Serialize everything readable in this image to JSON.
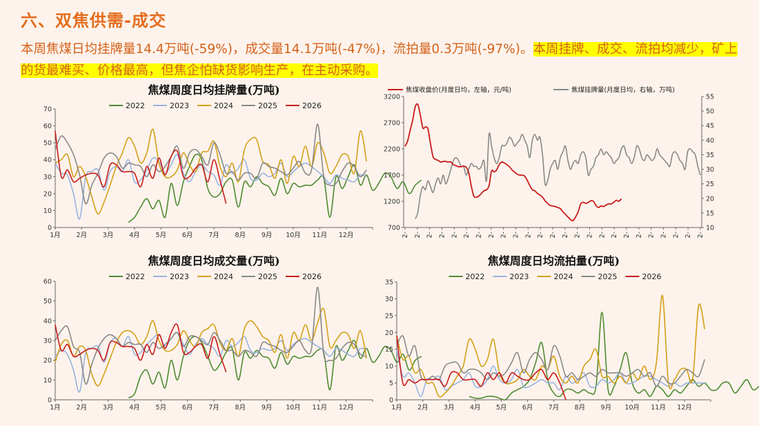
{
  "page": {
    "title": "六、双焦供需-成交",
    "summary_plain": "本周焦煤日均挂牌量14.4万吨(-59%)，成交量14.1万吨(-47%)，流拍量0.3万吨(-97%)。",
    "summary_highlight": "本周挂牌、成交、流拍均减少，矿上的货最难买、价格最高，但焦企怕缺货影响生产，在主动采购。"
  },
  "colors": {
    "2022": "#4e8a30",
    "2023": "#98b3e0",
    "2024": "#d4a017",
    "2025": "#888888",
    "2026": "#c81a1a"
  },
  "months": [
    "1月",
    "2月",
    "3月",
    "4月",
    "5月",
    "6月",
    "7月",
    "8月",
    "9月",
    "10月",
    "11月",
    "12月"
  ],
  "chart_data": [
    {
      "type": "line",
      "title": "焦煤周度日均挂牌量(万吨)",
      "ylim": [
        0,
        70
      ],
      "yticks": [
        0,
        10,
        20,
        30,
        40,
        50,
        60,
        70
      ],
      "x_unit": "week",
      "series": [
        {
          "name": "2022",
          "start": 12,
          "values": [
            3,
            6,
            12,
            17,
            11,
            16,
            6,
            26,
            13,
            27,
            36,
            43,
            40,
            23,
            18,
            20,
            27,
            28,
            12,
            27,
            24,
            30,
            26,
            24,
            19,
            29,
            20,
            26,
            24,
            25,
            25,
            28,
            29,
            6,
            30,
            23,
            30,
            37,
            25,
            31,
            22,
            26,
            32,
            30,
            23,
            27,
            20,
            25,
            28
          ]
        },
        {
          "name": "2023",
          "start": 0,
          "values": [
            38,
            32,
            31,
            20,
            5,
            30,
            33,
            34,
            22,
            33,
            36,
            33,
            40,
            27,
            28,
            34,
            41,
            39,
            32,
            37,
            43,
            32,
            27,
            33,
            37,
            33,
            31,
            25,
            37,
            32,
            35,
            40,
            29,
            28,
            32,
            30,
            32,
            38,
            30,
            33,
            36,
            38,
            36,
            33,
            30,
            26,
            31,
            29,
            28,
            27,
            31,
            30
          ]
        },
        {
          "name": "2024",
          "start": 0,
          "values": [
            38,
            40,
            43,
            30,
            36,
            30,
            18,
            8,
            15,
            25,
            36,
            44,
            53,
            48,
            38,
            44,
            58,
            38,
            30,
            30,
            34,
            44,
            37,
            33,
            44,
            45,
            51,
            36,
            30,
            38,
            27,
            46,
            52,
            52,
            39,
            37,
            29,
            40,
            26,
            42,
            36,
            48,
            36,
            50,
            44,
            32,
            36,
            43,
            42,
            32,
            57,
            39
          ]
        },
        {
          "name": "2025",
          "start": 0,
          "values": [
            46,
            54,
            50,
            43,
            31,
            14,
            25,
            32,
            41,
            44,
            42,
            35,
            38,
            37,
            36,
            30,
            37,
            33,
            36,
            42,
            48,
            35,
            44,
            46,
            42,
            37,
            50,
            43,
            32,
            33,
            28,
            32,
            32,
            29,
            38,
            36,
            35,
            33,
            31,
            35,
            39,
            32,
            34,
            61,
            30,
            25,
            26,
            33,
            38,
            36,
            30,
            34
          ]
        },
        {
          "name": "2026",
          "start": 0,
          "values": [
            57,
            30,
            34,
            27,
            29,
            31,
            32,
            31,
            24,
            37,
            37,
            33,
            33,
            32,
            24,
            36,
            29,
            41,
            31,
            42,
            45,
            30,
            30,
            35,
            37,
            27,
            40,
            28,
            14
          ]
        }
      ]
    },
    {
      "type": "line",
      "title": "",
      "legend": [
        "焦煤收盘价(月度日均，左轴，元/吨)",
        "焦煤挂牌量(月度日均，右轴，万吨)"
      ],
      "ylim_left": [
        700,
        3200
      ],
      "yticks_left": [
        700,
        1200,
        1700,
        2200,
        2700,
        3200
      ],
      "ylim_right": [
        10,
        55
      ],
      "yticks_right": [
        10,
        15,
        20,
        25,
        30,
        35,
        40,
        45,
        50,
        55
      ],
      "x_tick_label": "2-",
      "x_tick_count": 25,
      "series": [
        {
          "name": "焦煤收盘价",
          "axis": "left",
          "color": "#c81a1a",
          "start": 0,
          "values": [
            2250,
            2350,
            2550,
            2750,
            3000,
            3050,
            2850,
            2600,
            2620,
            2580,
            2300,
            2050,
            2000,
            1980,
            1950,
            1960,
            1960,
            1950,
            1950,
            1900,
            1880,
            1860,
            1860,
            1870,
            1850,
            1750,
            1500,
            1300,
            1280,
            1300,
            1350,
            1400,
            1420,
            1500,
            1780,
            1760,
            1800,
            1900,
            1950,
            1930,
            1900,
            1860,
            1800,
            1760,
            1720,
            1700,
            1700,
            1680,
            1600,
            1500,
            1420,
            1400,
            1350,
            1320,
            1280,
            1210,
            1160,
            1120,
            1110,
            1100,
            1080,
            1060,
            1000,
            950,
            900,
            850,
            830,
            900,
            1000,
            1150,
            1180,
            1160,
            1180,
            1210,
            1200,
            1120,
            1080,
            1110,
            1100,
            1130,
            1150,
            1150,
            1180,
            1220,
            1200,
            1250
          ]
        },
        {
          "name": "焦煤挂牌量",
          "axis": "right",
          "color": "#888888",
          "start": 4,
          "values": [
            13,
            15,
            21,
            24,
            23,
            26,
            24,
            22,
            25,
            27,
            25,
            28,
            25,
            27,
            30,
            33,
            34,
            33,
            31,
            31,
            28,
            30,
            32,
            31,
            31,
            30,
            31,
            33,
            26,
            42,
            38,
            34,
            32,
            34,
            38,
            38,
            39,
            41,
            40,
            38,
            39,
            40,
            42,
            40,
            38,
            34,
            40,
            42,
            40,
            41,
            35,
            25,
            26,
            30,
            32,
            33,
            30,
            34,
            36,
            38,
            33,
            30,
            32,
            33,
            32,
            35,
            36,
            34,
            28,
            30,
            31,
            34,
            35,
            37,
            35,
            36,
            35,
            34,
            32,
            33,
            34,
            37,
            38,
            35,
            34,
            32,
            34,
            38,
            37,
            34,
            33,
            35,
            34,
            33,
            34,
            37,
            35,
            34,
            33,
            32,
            31,
            35,
            36,
            35,
            33,
            32,
            30,
            36,
            37,
            36,
            35,
            31,
            28
          ]
        }
      ]
    },
    {
      "type": "line",
      "title": "焦煤周度日均成交量(万吨)",
      "ylim": [
        0,
        60
      ],
      "yticks": [
        0,
        10,
        20,
        30,
        40,
        50,
        60
      ],
      "x_unit": "week",
      "series": [
        {
          "name": "2022",
          "start": 12,
          "values": [
            1,
            3,
            12,
            15,
            8,
            14,
            6,
            20,
            10,
            22,
            30,
            32,
            29,
            22,
            15,
            18,
            24,
            26,
            10,
            24,
            21,
            25,
            22,
            21,
            16,
            24,
            18,
            22,
            21,
            22,
            22,
            25,
            24,
            5,
            27,
            20,
            25,
            30,
            21,
            26,
            19,
            22,
            27,
            25,
            19,
            23,
            15,
            20,
            22
          ]
        },
        {
          "name": "2023",
          "start": 0,
          "values": [
            22,
            25,
            23,
            15,
            4,
            24,
            26,
            27,
            19,
            29,
            31,
            27,
            32,
            23,
            24,
            28,
            31,
            33,
            27,
            31,
            34,
            28,
            23,
            28,
            31,
            28,
            26,
            22,
            30,
            27,
            29,
            32,
            25,
            24,
            26,
            25,
            26,
            30,
            25,
            28,
            30,
            31,
            29,
            27,
            25,
            22,
            26,
            25,
            23,
            22,
            26,
            25
          ]
        },
        {
          "name": "2024",
          "start": 0,
          "values": [
            19,
            28,
            30,
            22,
            27,
            25,
            13,
            7,
            13,
            21,
            29,
            34,
            35,
            33,
            28,
            32,
            40,
            30,
            25,
            25,
            28,
            35,
            30,
            27,
            34,
            36,
            38,
            29,
            25,
            31,
            22,
            36,
            40,
            37,
            32,
            30,
            24,
            33,
            21,
            34,
            30,
            38,
            30,
            39,
            46,
            27,
            30,
            34,
            33,
            26,
            35,
            21
          ]
        },
        {
          "name": "2025",
          "start": 0,
          "values": [
            30,
            35,
            37,
            27,
            24,
            8,
            18,
            26,
            31,
            33,
            31,
            27,
            29,
            28,
            28,
            24,
            29,
            26,
            28,
            31,
            34,
            27,
            32,
            32,
            30,
            28,
            34,
            30,
            25,
            25,
            22,
            25,
            24,
            22,
            29,
            28,
            27,
            25,
            24,
            27,
            30,
            25,
            26,
            57,
            23,
            20,
            21,
            26,
            29,
            28,
            23,
            22
          ]
        },
        {
          "name": "2026",
          "start": 0,
          "values": [
            38,
            25,
            28,
            22,
            23,
            25,
            26,
            25,
            20,
            29,
            29,
            27,
            27,
            26,
            20,
            28,
            23,
            33,
            26,
            34,
            38,
            24,
            24,
            27,
            28,
            21,
            32,
            23,
            14
          ]
        }
      ]
    },
    {
      "type": "line",
      "title": "焦煤周度日均流拍量(万吨)",
      "ylim": [
        0,
        35
      ],
      "yticks": [
        0,
        5,
        10,
        15,
        20,
        25,
        30,
        35
      ],
      "x_unit": "week",
      "series": [
        {
          "name": "2022",
          "start": 12,
          "values": [
            1,
            0.5,
            0.5,
            1,
            1,
            0.5,
            0,
            2,
            3,
            4,
            6,
            11,
            17,
            6,
            2,
            1,
            3,
            3,
            2,
            3,
            2,
            4,
            26,
            3,
            4,
            9,
            14,
            5,
            2,
            3,
            1,
            4,
            3,
            1,
            3,
            2,
            4,
            6,
            4,
            5,
            3,
            3,
            5,
            5,
            2,
            4,
            6,
            3,
            4,
            6
          ]
        },
        {
          "name": "2023",
          "start": 0,
          "values": [
            15,
            7,
            8,
            5,
            1,
            6,
            6,
            7,
            3,
            4,
            5,
            6,
            8,
            4,
            4,
            6,
            10,
            6,
            5,
            6,
            9,
            4,
            4,
            5,
            6,
            5,
            5,
            3,
            7,
            5,
            6,
            8,
            4,
            4,
            6,
            5,
            6,
            8,
            5,
            5,
            6,
            7,
            7,
            6,
            5,
            4,
            5,
            4,
            5,
            5,
            5,
            5
          ]
        },
        {
          "name": "2024",
          "start": 0,
          "values": [
            19,
            12,
            13,
            8,
            9,
            5,
            5,
            1,
            2,
            4,
            7,
            10,
            18,
            15,
            10,
            12,
            18,
            8,
            5,
            5,
            6,
            9,
            7,
            6,
            10,
            9,
            13,
            7,
            5,
            7,
            5,
            10,
            12,
            15,
            7,
            7,
            5,
            7,
            5,
            8,
            6,
            10,
            6,
            11,
            31,
            5,
            6,
            9,
            9,
            6,
            28,
            21
          ]
        },
        {
          "name": "2025",
          "start": 0,
          "values": [
            16,
            19,
            13,
            16,
            7,
            6,
            7,
            6,
            10,
            11,
            11,
            8,
            9,
            9,
            8,
            6,
            8,
            7,
            8,
            11,
            14,
            8,
            12,
            14,
            12,
            9,
            16,
            13,
            7,
            8,
            6,
            7,
            8,
            7,
            9,
            8,
            8,
            8,
            7,
            8,
            9,
            7,
            8,
            4,
            7,
            5,
            5,
            7,
            9,
            8,
            7,
            12
          ]
        },
        {
          "name": "2026",
          "start": 0,
          "values": [
            19,
            5,
            6,
            5,
            6,
            6,
            6,
            6,
            4,
            8,
            8,
            6,
            6,
            6,
            4,
            8,
            6,
            8,
            5,
            8,
            7,
            6,
            6,
            8,
            9,
            6,
            8,
            5,
            0
          ]
        }
      ]
    }
  ]
}
